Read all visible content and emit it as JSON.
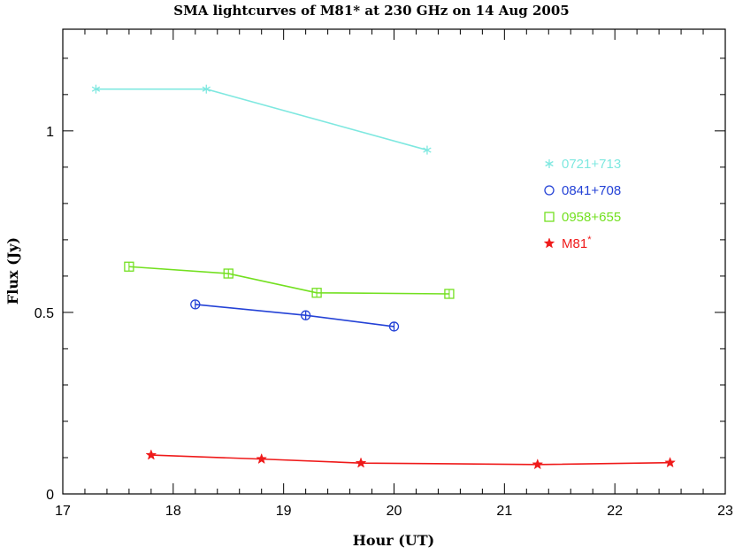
{
  "chart_data": {
    "type": "line",
    "title": "SMA lightcurves of M81* at 230 GHz on 14 Aug 2005",
    "xlabel": "Hour (UT)",
    "ylabel": "Flux (Jy)",
    "xlim": [
      17,
      23
    ],
    "ylim": [
      0,
      1.28
    ],
    "xticks": [
      17,
      18,
      19,
      20,
      21,
      22,
      23
    ],
    "xtick_labels": [
      "17",
      "18",
      "19",
      "20",
      "21",
      "22",
      "23"
    ],
    "yticks": [
      0,
      0.5,
      1
    ],
    "ytick_labels": [
      "0",
      "0.5",
      "1"
    ],
    "grid": false,
    "legend_position": "right",
    "series": [
      {
        "name": "0721+713",
        "color": "#7fe8e0",
        "marker": "asterisk",
        "x": [
          17.3,
          18.3,
          20.3
        ],
        "y": [
          1.115,
          1.115,
          0.947
        ]
      },
      {
        "name": "0841+708",
        "color": "#2442d6",
        "marker": "circle-cross",
        "x": [
          18.2,
          19.2,
          20.0
        ],
        "y": [
          0.522,
          0.492,
          0.461
        ]
      },
      {
        "name": "0958+655",
        "color": "#73e020",
        "marker": "square-cross",
        "x": [
          17.6,
          18.5,
          19.3,
          20.5
        ],
        "y": [
          0.626,
          0.607,
          0.554,
          0.551
        ]
      },
      {
        "name": "M81",
        "name_superscript": "*",
        "color": "#ef1a1a",
        "marker": "star",
        "x": [
          17.8,
          18.8,
          19.7,
          21.3,
          22.5
        ],
        "y": [
          0.107,
          0.096,
          0.085,
          0.081,
          0.086
        ]
      }
    ]
  }
}
